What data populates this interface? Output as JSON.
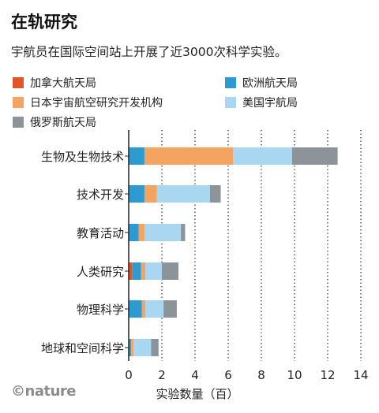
{
  "title": "在轨研究",
  "subtitle": "宇航员在国际空间站上开展了近3000次科学实验。",
  "logo_text": "©nature",
  "chart_data": {
    "type": "bar",
    "orientation": "horizontal",
    "stacked": true,
    "categories": [
      "生物及生物技术",
      "技术开发",
      "教育活动",
      "人类研究",
      "物理科学",
      "地球和空间科学"
    ],
    "series": [
      {
        "name": "加拿大航天局",
        "color": "#e0562a",
        "values": [
          0.05,
          0.05,
          0.05,
          0.2,
          0.05,
          0.05
        ]
      },
      {
        "name": "欧洲航天局",
        "color": "#2d9bd2",
        "values": [
          0.9,
          0.9,
          0.55,
          0.55,
          0.75,
          0.1
        ]
      },
      {
        "name": "日本宇宙航空研究开发机构",
        "color": "#f4a460",
        "values": [
          5.35,
          0.75,
          0.35,
          0.25,
          0.2,
          0.15
        ]
      },
      {
        "name": "美国宇航局",
        "color": "#a9d7f2",
        "values": [
          3.55,
          3.2,
          2.2,
          1.0,
          1.1,
          1.05
        ]
      },
      {
        "name": "俄罗斯航天局",
        "color": "#8c9399",
        "values": [
          2.75,
          0.65,
          0.25,
          1.0,
          0.8,
          0.45
        ]
      }
    ],
    "xlabel": "实验数量（百）",
    "xlim": [
      0,
      14
    ],
    "xticks": [
      0,
      2,
      4,
      6,
      8,
      10,
      12,
      14
    ],
    "grid": "vertical dotted",
    "legend_position": "top"
  }
}
